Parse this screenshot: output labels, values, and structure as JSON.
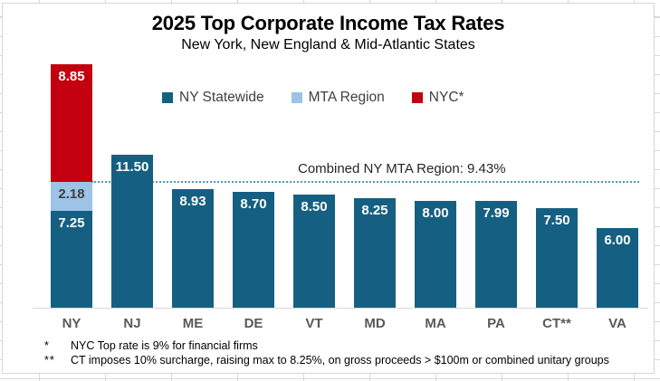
{
  "chart": {
    "title": "2025 Top Corporate Income Tax Rates",
    "subtitle": "New York, New England & Mid-Atlantic States",
    "footnotes": [
      {
        "marker": "*",
        "text": "NYC Top rate is 9% for financial firms"
      },
      {
        "marker": "**",
        "text": "CT imposes 10% surcharge, raising max to 8.25%, on gross proceeds > $100m or combined unitary groups"
      }
    ],
    "colors": {
      "statewide": "#156082",
      "mta": "#9DC3E6",
      "nyc": "#C2000F",
      "axis": "#D9D9D9",
      "reference_line": "#4E9AB4",
      "x_label": "#595959",
      "legend_text": "#404040"
    }
  },
  "chart_data": {
    "type": "bar",
    "stacked": true,
    "title": "2025 Top Corporate Income Tax Rates",
    "subtitle": "New York, New England & Mid-Atlantic States",
    "categories": [
      "NY",
      "NJ",
      "ME",
      "DE",
      "VT",
      "MD",
      "MA",
      "PA",
      "CT**",
      "VA"
    ],
    "series": [
      {
        "name": "NY Statewide",
        "color": "#156082",
        "label_color": "#FFFFFF",
        "values": [
          7.25,
          11.5,
          8.93,
          8.7,
          8.5,
          8.25,
          8.0,
          7.99,
          7.5,
          6.0
        ]
      },
      {
        "name": "MTA Region",
        "color": "#9DC3E6",
        "label_color": "#404040",
        "values": [
          2.18,
          0,
          0,
          0,
          0,
          0,
          0,
          0,
          0,
          0
        ]
      },
      {
        "name": "NYC*",
        "color": "#C2000F",
        "label_color": "#FFFFFF",
        "values": [
          8.85,
          0,
          0,
          0,
          0,
          0,
          0,
          0,
          0,
          0
        ]
      }
    ],
    "reference_line": {
      "label": "Combined NY MTA Region: 9.43%",
      "value": 9.43
    },
    "ylim": [
      0,
      18.28
    ],
    "grid": false,
    "legend_position": "top",
    "value_label_format": "2-decimals"
  }
}
